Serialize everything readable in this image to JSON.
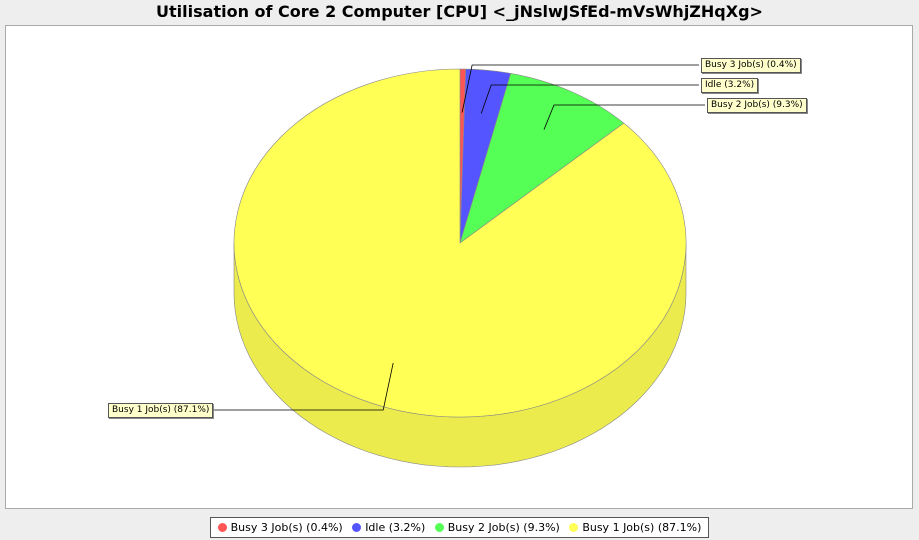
{
  "chart_data": {
    "type": "pie",
    "title": "Utilisation of Core 2 Computer [CPU] <_jNslwJSfEd-mVsWhjZHqXg>",
    "slices": [
      {
        "label": "Busy 3 Job(s) (0.4%)",
        "value": 0.4,
        "color": "#ff5555"
      },
      {
        "label": "Idle (3.2%)",
        "value": 3.2,
        "color": "#5555ff"
      },
      {
        "label": "Busy 2 Job(s) (9.3%)",
        "value": 9.3,
        "color": "#55ff55"
      },
      {
        "label": "Busy 1 Job(s) (87.1%)",
        "value": 87.1,
        "color": "#ffff55"
      }
    ],
    "legend_position": "bottom"
  }
}
